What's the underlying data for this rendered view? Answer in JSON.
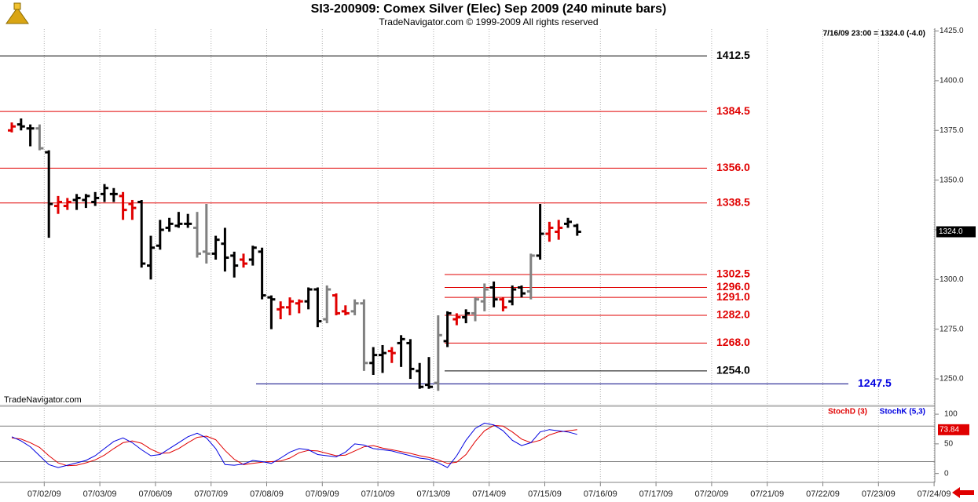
{
  "chart_data": [
    {
      "type": "ohlc",
      "title": "SI3-200909:  Comex Silver (Elec) Sep 2009  (240 minute bars)",
      "subtitle": "TradeNavigator.com © 1999-2009 All rights reserved",
      "status": "7/16/09 23:00 = 1324.0 (-4.0)",
      "watermark": "TradeNavigator.com",
      "categories": [
        null,
        null,
        null,
        "07/02/09",
        null,
        null,
        null,
        null,
        null,
        "07/03/09",
        null,
        null,
        null,
        null,
        null,
        "07/06/09",
        null,
        null,
        null,
        null,
        null,
        "07/07/09",
        null,
        null,
        null,
        null,
        null,
        "07/08/09",
        null,
        null,
        null,
        null,
        null,
        "07/09/09",
        null,
        null,
        null,
        null,
        null,
        "07/10/09",
        null,
        null,
        null,
        null,
        null,
        "07/13/09",
        null,
        null,
        null,
        null,
        null,
        "07/14/09",
        null,
        null,
        null,
        null,
        null,
        "07/15/09",
        null,
        null,
        null,
        null,
        null,
        "07/16/09",
        null,
        null,
        null,
        null,
        null,
        "07/17/09",
        null,
        null,
        null,
        null,
        null,
        "07/20/09",
        null,
        null,
        null,
        null,
        null,
        "07/21/09",
        null,
        null,
        null,
        null,
        null,
        "07/22/09",
        null,
        null,
        null,
        null,
        null,
        "07/23/09",
        null,
        null,
        null,
        null,
        null,
        "07/24/09"
      ],
      "open": [
        1375,
        1378,
        1376,
        1376,
        1364,
        1337,
        1337,
        1340,
        1340,
        1339,
        1343,
        1343,
        1342,
        1338,
        1339,
        1307,
        1317,
        1326,
        1327,
        1328,
        1326,
        1314,
        1313,
        1318,
        1312,
        1310,
        1310,
        1314,
        1291,
        1285,
        1286,
        1288,
        1289,
        1295,
        1280,
        1292,
        1284,
        1284,
        1288,
        1258,
        1262,
        1264,
        1268,
        1268,
        1254,
        1247,
        1248,
        1269,
        1280,
        1281,
        1283,
        1289,
        1296,
        1290,
        1289,
        1296,
        1294,
        1312,
        1323,
        1324,
        1328,
        1327,
        null,
        null,
        null,
        null,
        null,
        null,
        null,
        null,
        null,
        null,
        null,
        null,
        null,
        null,
        null,
        null,
        null,
        null,
        null,
        null,
        null,
        null,
        null,
        null,
        null,
        null,
        null,
        null,
        null,
        null,
        null,
        null,
        null,
        null,
        null,
        null,
        null,
        null
      ],
      "high": [
        1379,
        1381,
        1378,
        1378,
        1365,
        1342,
        1341,
        1343,
        1343,
        1344,
        1348,
        1346,
        1344,
        1340,
        1340,
        1322,
        1330,
        1331,
        1334,
        1333,
        1334,
        1338,
        1322,
        1326,
        1314,
        1313,
        1317,
        1316,
        1292,
        1289,
        1291,
        1290,
        1296,
        1296,
        1297,
        1293,
        1287,
        1290,
        1290,
        1266,
        1267,
        1266,
        1272,
        1270,
        1258,
        1261,
        1282,
        1284,
        1283,
        1285,
        1291,
        1298,
        1299,
        1291,
        1297,
        1297,
        1313,
        1338,
        1329,
        1330,
        1331,
        1328,
        null,
        null,
        null,
        null,
        null,
        null,
        null,
        null,
        null,
        null,
        null,
        null,
        null,
        null,
        null,
        null,
        null,
        null,
        null,
        null,
        null,
        null,
        null,
        null,
        null,
        null,
        null,
        null,
        null,
        null,
        null,
        null,
        null,
        null,
        null,
        null,
        null,
        null
      ],
      "low": [
        1374,
        1375,
        1367,
        1365,
        1321,
        1333,
        1335,
        1335,
        1336,
        1337,
        1339,
        1339,
        1330,
        1330,
        1306,
        1300,
        1315,
        1324,
        1326,
        1326,
        1311,
        1308,
        1310,
        1304,
        1301,
        1306,
        1307,
        1290,
        1275,
        1280,
        1282,
        1283,
        1285,
        1276,
        1278,
        1282,
        1282,
        1282,
        1254,
        1252,
        1253,
        1258,
        1256,
        1250,
        1245,
        1245,
        1244,
        1266,
        1277,
        1278,
        1279,
        1284,
        1286,
        1284,
        1287,
        1291,
        1290,
        1310,
        1319,
        1320,
        1326,
        1322,
        null,
        null,
        null,
        null,
        null,
        null,
        null,
        null,
        null,
        null,
        null,
        null,
        null,
        null,
        null,
        null,
        null,
        null,
        null,
        null,
        null,
        null,
        null,
        null,
        null,
        null,
        null,
        null,
        null,
        null,
        null,
        null,
        null,
        null,
        null,
        null,
        null,
        null
      ],
      "close": [
        1377,
        1377,
        1376,
        1366,
        1338,
        1339,
        1339,
        1341,
        1342,
        1341,
        1346,
        1343,
        1335,
        1336,
        1308,
        1316,
        1325,
        1328,
        1328,
        1328,
        1313,
        1313,
        1320,
        1311,
        1307,
        1308,
        1316,
        1292,
        1290,
        1286,
        1289,
        1289,
        1295,
        1279,
        1295,
        1283,
        1283,
        1288,
        1258,
        1262,
        1263,
        1263,
        1270,
        1255,
        1246,
        1246,
        1272,
        1283,
        1281,
        1283,
        1290,
        1295,
        1290,
        1286,
        1295,
        1293,
        1312,
        1323,
        1326,
        1326,
        1329,
        1324,
        null,
        null,
        null,
        null,
        null,
        null,
        null,
        null,
        null,
        null,
        null,
        null,
        null,
        null,
        null,
        null,
        null,
        null,
        null,
        null,
        null,
        null,
        null,
        null,
        null,
        null,
        null,
        null,
        null,
        null,
        null,
        null,
        null,
        null,
        null,
        null,
        null,
        null
      ],
      "bar_colors": [
        "#e00000",
        "#000000",
        "#000000",
        "#808080",
        "#000000",
        "#e00000",
        "#e00000",
        "#000000",
        "#000000",
        "#000000",
        "#000000",
        "#000000",
        "#e00000",
        "#e00000",
        "#000000",
        "#000000",
        "#000000",
        "#000000",
        "#000000",
        "#000000",
        "#808080",
        "#808080",
        "#000000",
        "#000000",
        "#000000",
        "#e00000",
        "#000000",
        "#000000",
        "#000000",
        "#e00000",
        "#e00000",
        "#e00000",
        "#000000",
        "#000000",
        "#808080",
        "#e00000",
        "#e00000",
        "#808080",
        "#808080",
        "#000000",
        "#000000",
        "#e00000",
        "#000000",
        "#000000",
        "#000000",
        "#000000",
        "#808080",
        "#000000",
        "#e00000",
        "#000000",
        "#808080",
        "#808080",
        "#000000",
        "#e00000",
        "#000000",
        "#000000",
        "#808080",
        "#000000",
        "#e00000",
        "#e00000",
        "#000000",
        "#000000",
        null,
        null,
        null,
        null,
        null,
        null,
        null,
        null,
        null,
        null,
        null,
        null,
        null,
        null,
        null,
        null,
        null,
        null,
        null,
        null,
        null,
        null,
        null,
        null,
        null,
        null,
        null,
        null,
        null,
        null,
        null,
        null,
        null,
        null,
        null,
        null,
        null,
        null
      ],
      "ylim": [
        1237,
        1426
      ],
      "yticks": [
        {
          "value": 1250,
          "label": "1250.0"
        },
        {
          "value": 1275,
          "label": "1275.0"
        },
        {
          "value": 1300,
          "label": "1300.0"
        },
        {
          "value": 1325,
          "label": "1325.0"
        },
        {
          "value": 1350,
          "label": "1350.0"
        },
        {
          "value": 1375,
          "label": "1375.0"
        },
        {
          "value": 1400,
          "label": "1400.0"
        },
        {
          "value": 1425,
          "label": "1425.0"
        }
      ],
      "levels": [
        {
          "value": 1412.5,
          "color": "#000000"
        },
        {
          "value": 1384.5,
          "color": "#e00000"
        },
        {
          "value": 1356,
          "label": "1356.0",
          "color": "#e00000"
        },
        {
          "value": 1338.5,
          "color": "#e00000"
        },
        {
          "value": 1302.5,
          "color": "#e00000"
        },
        {
          "value": 1296,
          "label": "1296.0",
          "color": "#e00000"
        },
        {
          "value": 1291,
          "label": "1291.0",
          "color": "#e00000"
        },
        {
          "value": 1282,
          "label": "1282.0",
          "color": "#e00000"
        },
        {
          "value": 1268,
          "label": "1268.0",
          "color": "#e00000"
        },
        {
          "value": 1254,
          "label": "1254.0",
          "color": "#000000"
        },
        {
          "value": 1247.5,
          "color": "#0000e0"
        }
      ],
      "last_price": {
        "value": 1324,
        "label": "1324.0"
      },
      "grid": true
    },
    {
      "type": "line",
      "series": [
        {
          "name": "StochD (3)",
          "color": "#e00000",
          "values": [
            60,
            58,
            52,
            44,
            30,
            18,
            13,
            14,
            18,
            23,
            31,
            42,
            52,
            55,
            51,
            41,
            34,
            35,
            42,
            52,
            61,
            63,
            57,
            39,
            24,
            15,
            17,
            19,
            20,
            21,
            26,
            35,
            39,
            38,
            34,
            30,
            31,
            38,
            45,
            47,
            43,
            40,
            37,
            34,
            30,
            27,
            23,
            17,
            19,
            32,
            54,
            72,
            81,
            80,
            70,
            58,
            52,
            56,
            65,
            70,
            72,
            73.84,
            null,
            null,
            null,
            null,
            null,
            null,
            null,
            null,
            null,
            null,
            null,
            null,
            null,
            null,
            null,
            null,
            null,
            null,
            null,
            null,
            null,
            null,
            null,
            null,
            null,
            null,
            null,
            null,
            null,
            null,
            null,
            null,
            null,
            null,
            null,
            null,
            null,
            null
          ]
        },
        {
          "name": "StochK (5,3)",
          "color": "#0000e0",
          "values": [
            62,
            55,
            45,
            30,
            15,
            10,
            14,
            18,
            22,
            30,
            42,
            54,
            60,
            52,
            40,
            30,
            32,
            42,
            52,
            62,
            68,
            60,
            42,
            15,
            14,
            16,
            22,
            20,
            17,
            26,
            36,
            42,
            40,
            32,
            30,
            28,
            36,
            50,
            48,
            42,
            40,
            38,
            34,
            30,
            26,
            24,
            18,
            10,
            30,
            56,
            76,
            85,
            82,
            72,
            56,
            47,
            52,
            70,
            74,
            72,
            70,
            66,
            null,
            null,
            null,
            null,
            null,
            null,
            null,
            null,
            null,
            null,
            null,
            null,
            null,
            null,
            null,
            null,
            null,
            null,
            null,
            null,
            null,
            null,
            null,
            null,
            null,
            null,
            null,
            null,
            null,
            null,
            null,
            null,
            null,
            null,
            null,
            null,
            null,
            null
          ]
        }
      ],
      "ylim": [
        -15,
        112
      ],
      "yticks": [
        0,
        50,
        100
      ],
      "levels": [
        20,
        80
      ]
    }
  ]
}
